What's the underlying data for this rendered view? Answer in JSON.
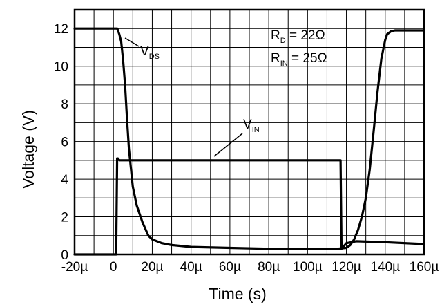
{
  "chart_data": {
    "type": "line",
    "title": "",
    "xlabel": "Time (s)",
    "ylabel": "Voltage (V)",
    "xlim": [
      -20,
      160
    ],
    "ylim": [
      0,
      13
    ],
    "x_unit": "µs",
    "grid": true,
    "x_ticks": [
      -20,
      0,
      20,
      40,
      60,
      80,
      100,
      120,
      140,
      160
    ],
    "x_tick_labels": [
      "-20µ",
      "0",
      "20µ",
      "40µ",
      "60µ",
      "80µ",
      "100µ",
      "120µ",
      "140µ",
      "160µ"
    ],
    "y_ticks": [
      0,
      2,
      4,
      6,
      8,
      10,
      12
    ],
    "y_tick_labels": [
      "0",
      "2",
      "4",
      "6",
      "8",
      "10",
      "12"
    ],
    "series": [
      {
        "name": "VDS",
        "label": {
          "main": "V",
          "sub": "DS"
        },
        "color": "#000000",
        "x": [
          -20,
          2,
          3,
          4,
          5,
          6,
          7,
          8,
          10,
          12,
          15,
          18,
          20,
          25,
          30,
          40,
          60,
          80,
          100,
          115,
          120,
          122,
          124,
          126,
          128,
          130,
          132,
          134,
          136,
          138,
          140,
          141,
          143,
          145,
          150,
          160
        ],
        "y": [
          12,
          12,
          11.7,
          11.3,
          10.3,
          9,
          7.2,
          5.6,
          3.6,
          2.6,
          1.7,
          1.0,
          0.8,
          0.6,
          0.5,
          0.4,
          0.35,
          0.3,
          0.3,
          0.3,
          0.35,
          0.5,
          0.8,
          1.3,
          2.0,
          3.0,
          4.5,
          6.5,
          8.6,
          10.4,
          11.4,
          11.7,
          11.85,
          11.9,
          11.9,
          11.9
        ]
      },
      {
        "name": "VIN",
        "label": {
          "main": "V",
          "sub": "IN"
        },
        "color": "#000000",
        "x": [
          -20,
          1.4,
          1.9,
          2.3,
          3,
          117,
          117.5,
          120,
          125,
          140,
          160
        ],
        "y": [
          0,
          0,
          5.1,
          5.1,
          5.0,
          5.0,
          0.3,
          0.6,
          0.7,
          0.65,
          0.55
        ]
      }
    ],
    "annotations": [
      {
        "main": "R",
        "sub": "D",
        "rest": " = 22Ω"
      },
      {
        "main": "R",
        "sub": "IN",
        "rest": " = 25Ω"
      }
    ]
  }
}
